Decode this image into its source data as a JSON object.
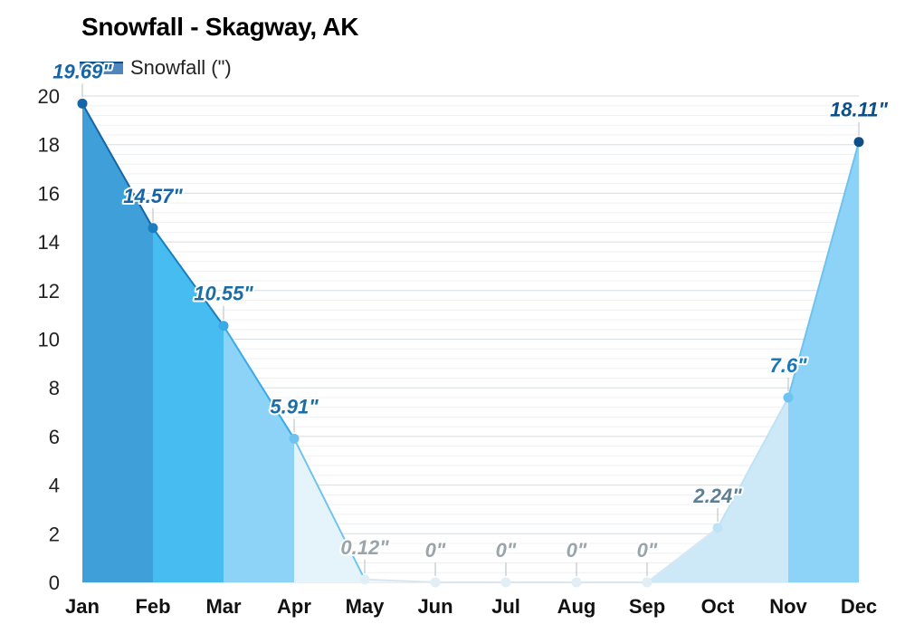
{
  "chart_data": {
    "type": "area",
    "title": "Snowfall - Skagway, AK",
    "categories": [
      "Jan",
      "Feb",
      "Mar",
      "Apr",
      "May",
      "Jun",
      "Jul",
      "Aug",
      "Sep",
      "Oct",
      "Nov",
      "Dec"
    ],
    "series": [
      {
        "name": "Snowfall (\")",
        "values": [
          19.69,
          14.57,
          10.55,
          5.91,
          0.12,
          0,
          0,
          0,
          0,
          2.24,
          7.6,
          18.11
        ]
      }
    ],
    "data_labels": [
      "19.69\"",
      "14.57\"",
      "10.55\"",
      "5.91\"",
      "0.12\"",
      "0\"",
      "0\"",
      "0\"",
      "0\"",
      "2.24\"",
      "7.6\"",
      "18.11\""
    ],
    "y_ticks": [
      0,
      2,
      4,
      6,
      8,
      10,
      12,
      14,
      16,
      18,
      20
    ],
    "ylim": [
      0,
      20
    ],
    "xlabel": "",
    "ylabel": "",
    "grid": true,
    "legend": "top-left",
    "month_colors": {
      "fill": [
        "#3f9fd8",
        "#46bcf1",
        "#8dd3f7",
        "#e5f4fb",
        "#f2f7fa",
        "#f2f7fa",
        "#f2f7fa",
        "#f2f7fa",
        "#cde9f8",
        "#cde9f8",
        "#8dd3f7",
        "#4f86bb"
      ],
      "point": [
        "#1565a8",
        "#1a7fc1",
        "#3aa9e8",
        "#6fc3ef",
        "#e1eef5",
        "#e1eef5",
        "#e1eef5",
        "#e1eef5",
        "#e1eef5",
        "#bfe2f5",
        "#6fc3ef",
        "#0d4f8b"
      ],
      "label": [
        "#1565a8",
        "#1565a8",
        "#1a6ea6",
        "#1a6ea6",
        "#9aa4ab",
        "#9aa4ab",
        "#9aa4ab",
        "#9aa4ab",
        "#9aa4ab",
        "#5d7f95",
        "#1a78b8",
        "#0d4f8b"
      ]
    }
  }
}
